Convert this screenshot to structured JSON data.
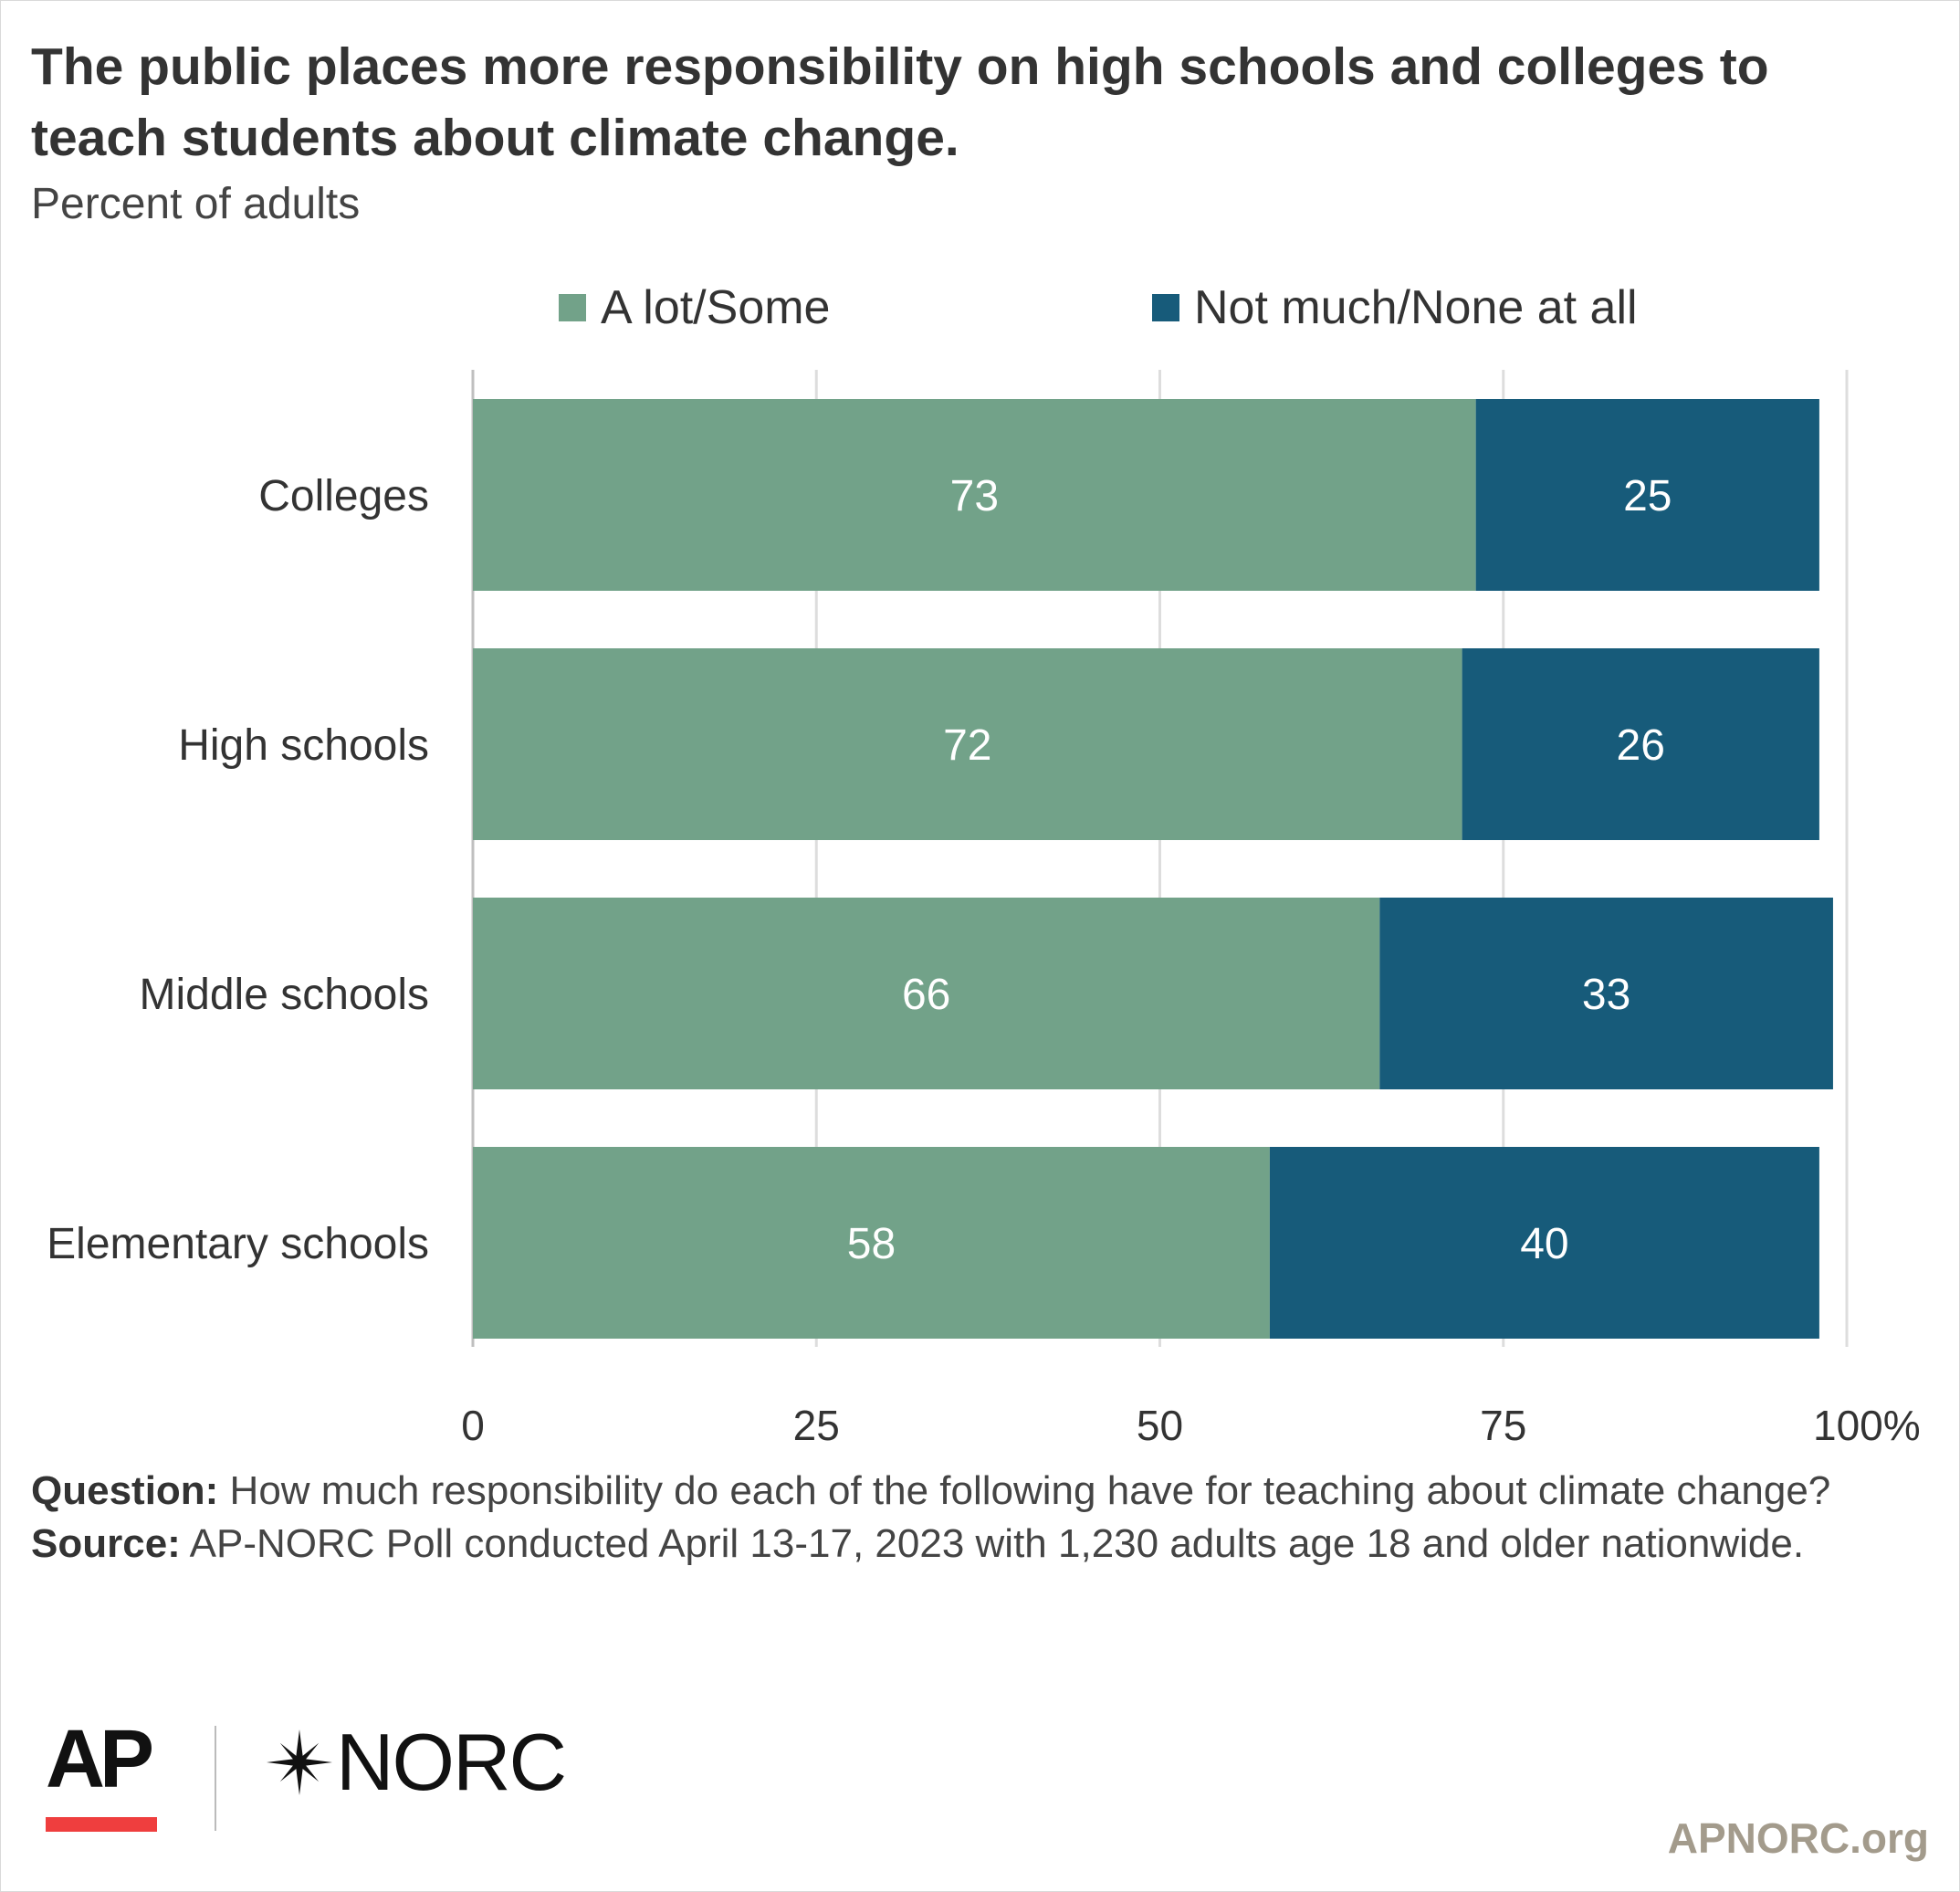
{
  "title": "The public places more responsibility on high schools and colleges to teach students about climate change.",
  "subtitle": "Percent of adults",
  "legend": [
    {
      "label": "A lot/Some",
      "color": "#72a289"
    },
    {
      "label": "Not much/None at all",
      "color": "#175b7a"
    }
  ],
  "chart_data": {
    "type": "bar",
    "orientation": "horizontal",
    "stacked": true,
    "categories": [
      "Colleges",
      "High schools",
      "Middle schools",
      "Elementary schools"
    ],
    "series": [
      {
        "name": "A lot/Some",
        "color": "#72a289",
        "values": [
          73,
          72,
          66,
          58
        ]
      },
      {
        "name": "Not much/None at all",
        "color": "#175b7a",
        "values": [
          25,
          26,
          33,
          40
        ]
      }
    ],
    "xlim": [
      0,
      100
    ],
    "xticks": [
      0,
      25,
      50,
      75,
      100
    ],
    "xtick_labels": [
      "0",
      "25",
      "50",
      "75",
      "100%"
    ],
    "grid": true,
    "legend_position": "top"
  },
  "notes": {
    "question_label": "Question:",
    "question_text": " How much responsibility do each of the following have for teaching about climate change?",
    "source_label": "Source:",
    "source_text": " AP-NORC Poll conducted April 13-17, 2023 with 1,230 adults age 18 and older nationwide."
  },
  "logos": {
    "ap": "AP",
    "norc": "NORC",
    "ap_bar_color": "#ef3e3e"
  },
  "site": "APNORC.org"
}
